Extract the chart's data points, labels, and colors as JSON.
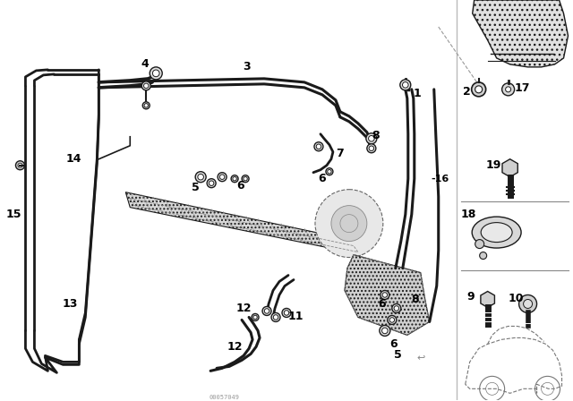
{
  "fig_width": 6.4,
  "fig_height": 4.48,
  "dpi": 100,
  "line_color": "#1a1a1a",
  "gray_light": "#cccccc",
  "gray_mid": "#aaaaaa",
  "gray_dark": "#666666",
  "watermark": "00057049"
}
